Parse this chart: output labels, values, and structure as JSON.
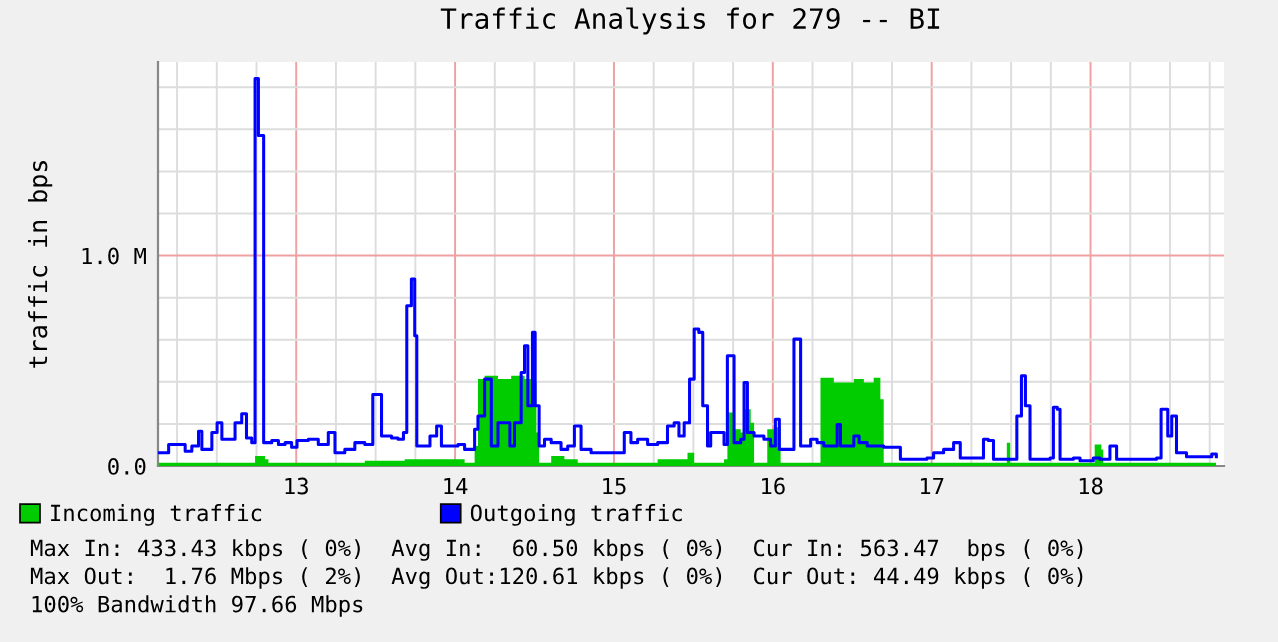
{
  "chart_data": {
    "type": "area",
    "title": "Traffic Analysis for 279 -- BI",
    "ylabel": "traffic in bps",
    "series": [
      {
        "name": "Incoming traffic",
        "color": "#00cc00",
        "x": [
          12.134,
          12.72,
          12.741,
          12.804,
          12.825,
          13.348,
          13.432,
          13.683,
          14.06,
          14.123,
          14.144,
          14.186,
          14.27,
          14.353,
          14.437,
          14.479,
          14.512,
          14.529,
          14.605,
          14.688,
          14.772,
          15.275,
          15.463,
          15.505,
          15.693,
          15.714,
          15.756,
          15.798,
          15.819,
          15.861,
          15.882,
          15.965,
          16.007,
          16.049,
          16.279,
          16.3,
          16.384,
          16.51,
          16.573,
          16.635,
          16.677,
          16.698,
          17.431,
          17.473,
          17.494,
          17.996,
          18.026,
          18.068,
          18.08,
          18.79
        ],
        "values": [
          0.016,
          0.016,
          0.048,
          0.032,
          0.016,
          0.016,
          0.025,
          0.032,
          0.016,
          0.095,
          0.413,
          0.429,
          0.413,
          0.429,
          0.413,
          0.397,
          0.159,
          0.016,
          0.048,
          0.032,
          0.016,
          0.032,
          0.063,
          0.016,
          0.032,
          0.254,
          0.175,
          0.159,
          0.27,
          0.206,
          0.016,
          0.175,
          0.184,
          0.016,
          0.016,
          0.419,
          0.397,
          0.413,
          0.397,
          0.419,
          0.317,
          0.016,
          0.016,
          0.111,
          0.016,
          0.016,
          0.102,
          0.079,
          0.016,
          0.016
        ]
      },
      {
        "name": "Outgoing traffic",
        "type": "step",
        "color": "#0000ff",
        "x": [
          12.134,
          12.176,
          12.197,
          12.26,
          12.301,
          12.343,
          12.385,
          12.406,
          12.469,
          12.502,
          12.532,
          12.586,
          12.615,
          12.657,
          12.687,
          12.72,
          12.741,
          12.762,
          12.783,
          12.795,
          12.846,
          12.888,
          12.93,
          12.971,
          13.005,
          13.076,
          13.139,
          13.202,
          13.244,
          13.306,
          13.369,
          13.432,
          13.482,
          13.516,
          13.537,
          13.6,
          13.641,
          13.675,
          13.696,
          13.725,
          13.746,
          13.759,
          13.809,
          13.842,
          13.884,
          13.914,
          13.976,
          14.018,
          14.06,
          14.123,
          14.144,
          14.186,
          14.228,
          14.27,
          14.311,
          14.345,
          14.374,
          14.416,
          14.437,
          14.458,
          14.487,
          14.504,
          14.529,
          14.563,
          14.605,
          14.667,
          14.709,
          14.751,
          14.793,
          14.856,
          14.94,
          15.023,
          15.065,
          15.107,
          15.149,
          15.212,
          15.275,
          15.337,
          15.379,
          15.409,
          15.442,
          15.476,
          15.505,
          15.534,
          15.559,
          15.589,
          15.609,
          15.651,
          15.693,
          15.714,
          15.735,
          15.756,
          15.798,
          15.819,
          15.84,
          15.882,
          15.915,
          15.944,
          15.986,
          16.016,
          16.041,
          16.091,
          16.133,
          16.154,
          16.175,
          16.238,
          16.279,
          16.321,
          16.363,
          16.405,
          16.426,
          16.489,
          16.51,
          16.543,
          16.594,
          16.656,
          16.698,
          16.761,
          16.803,
          16.887,
          16.97,
          17.012,
          17.075,
          17.138,
          17.18,
          17.264,
          17.326,
          17.356,
          17.389,
          17.473,
          17.536,
          17.565,
          17.59,
          17.619,
          17.703,
          17.745,
          17.766,
          17.791,
          17.808,
          17.892,
          17.934,
          18.017,
          18.059,
          18.122,
          18.164,
          18.269,
          18.352,
          18.415,
          18.444,
          18.47,
          18.486,
          18.511,
          18.541,
          18.604,
          18.729,
          18.763,
          18.792
        ],
        "values": [
          0.063,
          0.063,
          0.102,
          0.102,
          0.07,
          0.095,
          0.165,
          0.079,
          0.159,
          0.206,
          0.127,
          0.127,
          0.206,
          0.248,
          0.133,
          0.111,
          1.841,
          1.571,
          1.571,
          0.111,
          0.121,
          0.102,
          0.111,
          0.089,
          0.121,
          0.127,
          0.102,
          0.159,
          0.063,
          0.079,
          0.111,
          0.102,
          0.34,
          0.34,
          0.143,
          0.133,
          0.127,
          0.159,
          0.762,
          0.889,
          0.619,
          0.095,
          0.095,
          0.143,
          0.19,
          0.095,
          0.095,
          0.102,
          0.079,
          0.175,
          0.238,
          0.413,
          0.095,
          0.206,
          0.206,
          0.095,
          0.206,
          0.444,
          0.571,
          0.286,
          0.635,
          0.286,
          0.095,
          0.127,
          0.111,
          0.079,
          0.095,
          0.19,
          0.079,
          0.063,
          0.063,
          0.063,
          0.159,
          0.111,
          0.127,
          0.102,
          0.111,
          0.19,
          0.206,
          0.143,
          0.206,
          0.413,
          0.651,
          0.635,
          0.286,
          0.095,
          0.159,
          0.159,
          0.102,
          0.524,
          0.524,
          0.111,
          0.127,
          0.397,
          0.159,
          0.143,
          0.143,
          0.127,
          0.095,
          0.222,
          0.079,
          0.079,
          0.603,
          0.603,
          0.095,
          0.127,
          0.111,
          0.095,
          0.095,
          0.197,
          0.095,
          0.095,
          0.143,
          0.111,
          0.095,
          0.095,
          0.089,
          0.089,
          0.032,
          0.032,
          0.038,
          0.063,
          0.079,
          0.111,
          0.038,
          0.038,
          0.127,
          0.121,
          0.032,
          0.032,
          0.238,
          0.429,
          0.286,
          0.032,
          0.032,
          0.038,
          0.279,
          0.27,
          0.032,
          0.038,
          0.025,
          0.038,
          0.032,
          0.095,
          0.032,
          0.032,
          0.032,
          0.038,
          0.27,
          0.27,
          0.143,
          0.238,
          0.063,
          0.044,
          0.044,
          0.057,
          0.044
        ]
      }
    ],
    "xlim": [
      12.13,
      18.84
    ],
    "ylim": [
      0,
      1.92
    ],
    "xticks": [
      {
        "value": 12.25,
        "label": null
      },
      {
        "value": 12.5,
        "label": null
      },
      {
        "value": 12.75,
        "label": null
      },
      13,
      {
        "value": 13.25,
        "label": null
      },
      {
        "value": 13.5,
        "label": null
      },
      {
        "value": 13.75,
        "label": null
      },
      14,
      {
        "value": 14.25,
        "label": null
      },
      {
        "value": 14.5,
        "label": null
      },
      {
        "value": 14.75,
        "label": null
      },
      15,
      {
        "value": 15.25,
        "label": null
      },
      {
        "value": 15.5,
        "label": null
      },
      {
        "value": 15.75,
        "label": null
      },
      16,
      {
        "value": 16.25,
        "label": null
      },
      {
        "value": 16.5,
        "label": null
      },
      {
        "value": 16.75,
        "label": null
      },
      17,
      {
        "value": 17.25,
        "label": null
      },
      {
        "value": 17.5,
        "label": null
      },
      {
        "value": 17.75,
        "label": null
      },
      18,
      {
        "value": 18.25,
        "label": null
      },
      {
        "value": 18.5,
        "label": null
      },
      {
        "value": 18.75,
        "label": null
      }
    ],
    "yticks": [
      {
        "value": 0,
        "label": "0.0"
      },
      {
        "value": 0.2,
        "label": null
      },
      {
        "value": 0.4,
        "label": null
      },
      {
        "value": 0.6,
        "label": null
      },
      {
        "value": 0.8,
        "label": null
      },
      {
        "value": 1.0,
        "label": "1.0 M"
      },
      {
        "value": 1.2,
        "label": null
      },
      {
        "value": 1.4,
        "label": null
      },
      {
        "value": 1.6,
        "label": null
      },
      {
        "value": 1.8,
        "label": null
      }
    ],
    "grid": true,
    "legend": "bottom",
    "annotations": [
      "Max In: 433.43 kbps ( 0%)  Avg In:  60.50 kbps ( 0%)  Cur In: 563.47  bps ( 0%)",
      "Max Out:  1.76 Mbps ( 2%)  Avg Out:120.61 kbps ( 0%)  Cur Out: 44.49 kbps ( 0%)",
      "100% Bandwidth 97.66 Mbps"
    ]
  }
}
